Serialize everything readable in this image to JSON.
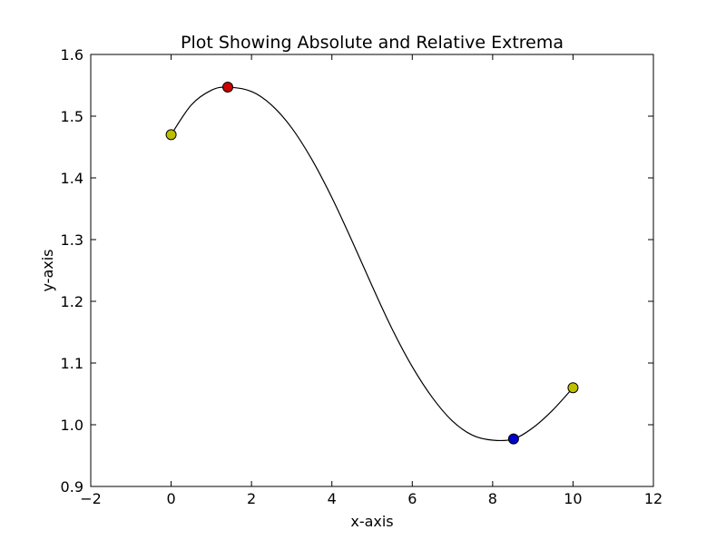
{
  "chart_data": {
    "type": "line",
    "title": "Plot Showing Absolute and Relative Extrema",
    "xlabel": "x-axis",
    "ylabel": "y-axis",
    "xlim": [
      -2,
      12
    ],
    "ylim": [
      0.9,
      1.6
    ],
    "xticks": [
      -2,
      0,
      2,
      4,
      6,
      8,
      10,
      12
    ],
    "yticks": [
      0.9,
      1.0,
      1.1,
      1.2,
      1.3,
      1.4,
      1.5,
      1.6
    ],
    "xtick_labels": [
      "−2",
      "0",
      "2",
      "4",
      "6",
      "8",
      "10",
      "12"
    ],
    "ytick_labels": [
      "0.9",
      "1.0",
      "1.1",
      "1.2",
      "1.3",
      "1.4",
      "1.5",
      "1.6"
    ],
    "grid": false,
    "series": [
      {
        "color": "#000000",
        "x": [
          0,
          0.5,
          1.0,
          1.41,
          2.0,
          2.5,
          3.0,
          3.5,
          4.0,
          4.5,
          5.0,
          5.5,
          6.0,
          6.5,
          7.0,
          7.5,
          8.0,
          8.52,
          9.0,
          9.5,
          10.0
        ],
        "y": [
          1.47,
          1.518,
          1.542,
          1.547,
          1.54,
          1.518,
          1.481,
          1.43,
          1.368,
          1.298,
          1.225,
          1.155,
          1.094,
          1.044,
          1.006,
          0.983,
          0.975,
          0.977,
          0.995,
          1.024,
          1.06
        ]
      }
    ],
    "markers": [
      {
        "label": "endpoint",
        "x": 0,
        "y": 1.47,
        "color": "#bfbf00"
      },
      {
        "label": "absolute maximum",
        "x": 1.41,
        "y": 1.547,
        "color": "#cc0000"
      },
      {
        "label": "absolute minimum",
        "x": 8.52,
        "y": 0.977,
        "color": "#0000cc"
      },
      {
        "label": "endpoint",
        "x": 10,
        "y": 1.06,
        "color": "#bfbf00"
      }
    ]
  }
}
